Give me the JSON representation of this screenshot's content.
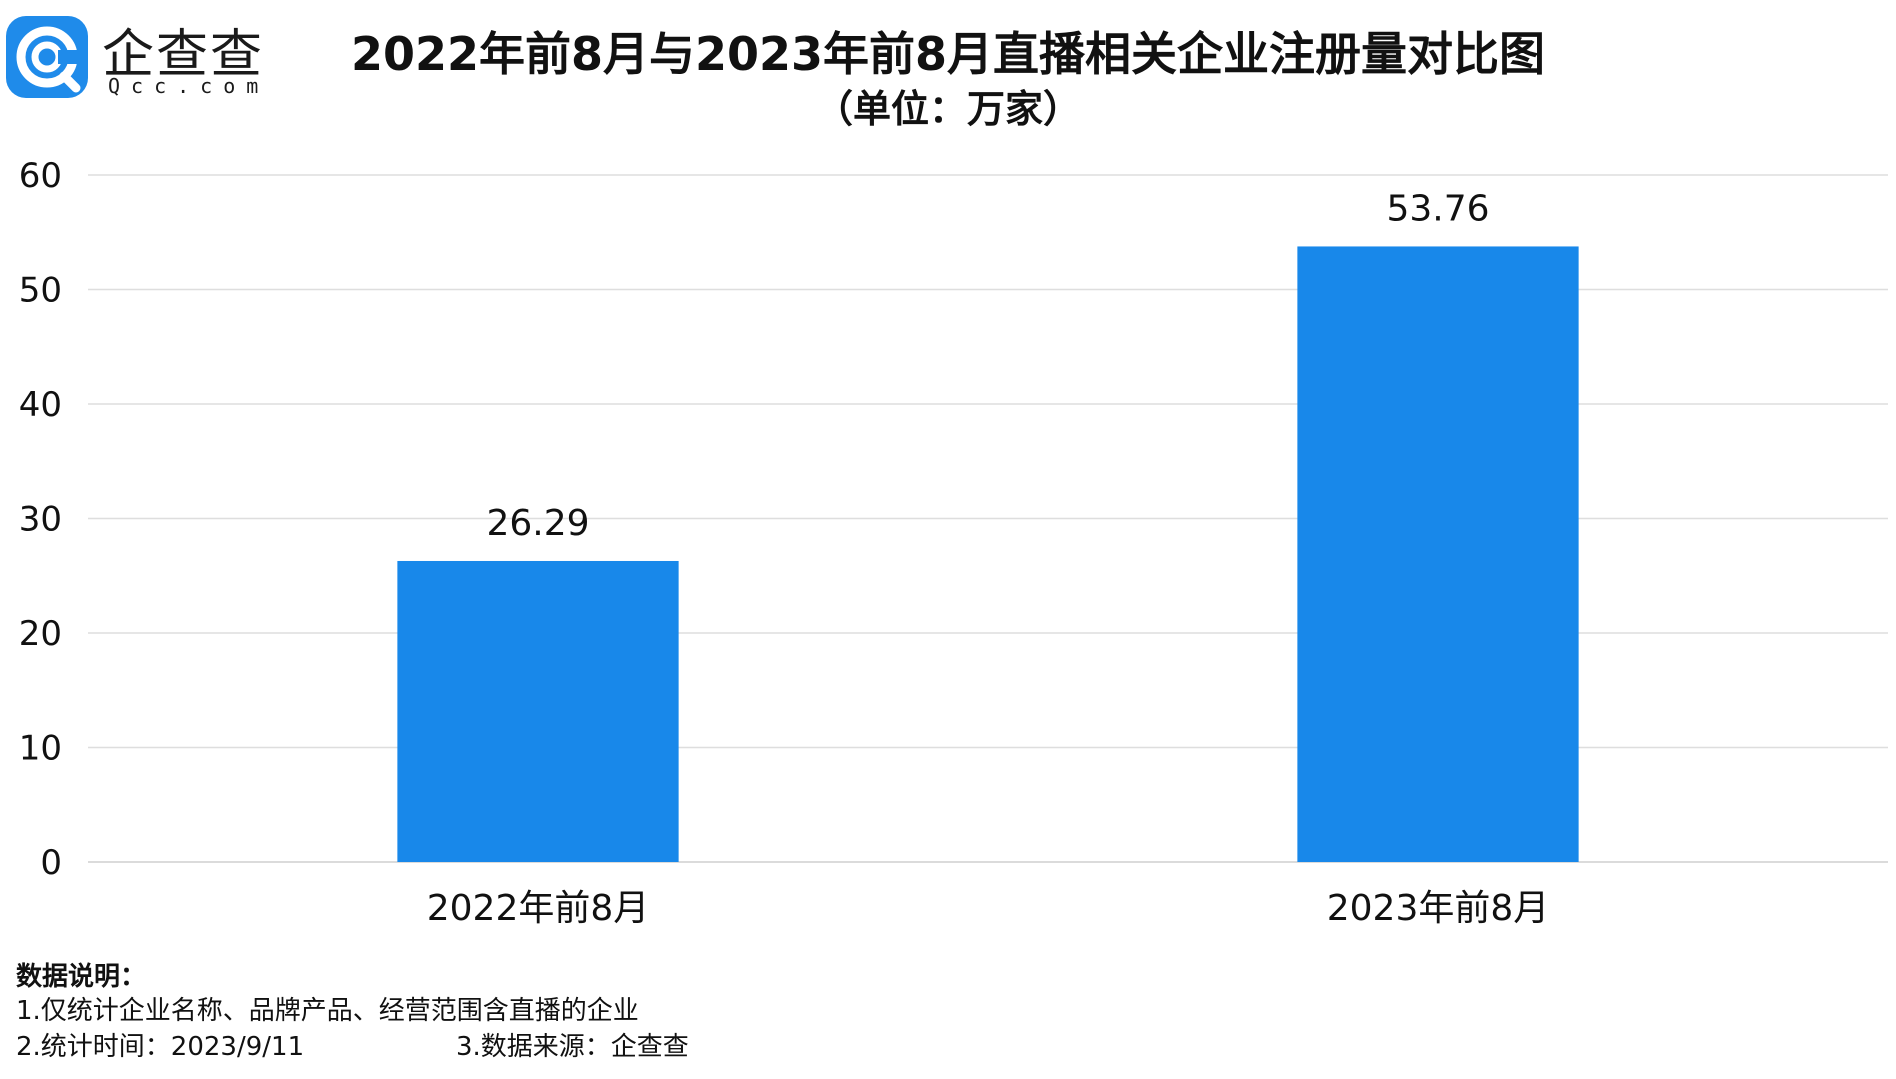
{
  "logo": {
    "name": "企查查",
    "domain": "Qcc.com"
  },
  "chart_data": {
    "type": "bar",
    "title": "2022年前8月与2023年前8月直播相关企业注册量对比图",
    "subtitle": "（单位：万家）",
    "categories": [
      "2022年前8月",
      "2023年前8月"
    ],
    "values": [
      26.29,
      53.76
    ],
    "data_labels": [
      "26.29",
      "53.76"
    ],
    "ylim": [
      0,
      60
    ],
    "yticks": [
      0,
      10,
      20,
      30,
      40,
      50,
      60
    ],
    "grid": true,
    "bar_color": "#1888ea"
  },
  "notes": {
    "heading": "数据说明：",
    "line1": "1.仅统计企业名称、品牌产品、经营范围含直播的企业",
    "line2": "2.统计时间：2023/9/11",
    "line3": "3.数据来源：企查查"
  }
}
